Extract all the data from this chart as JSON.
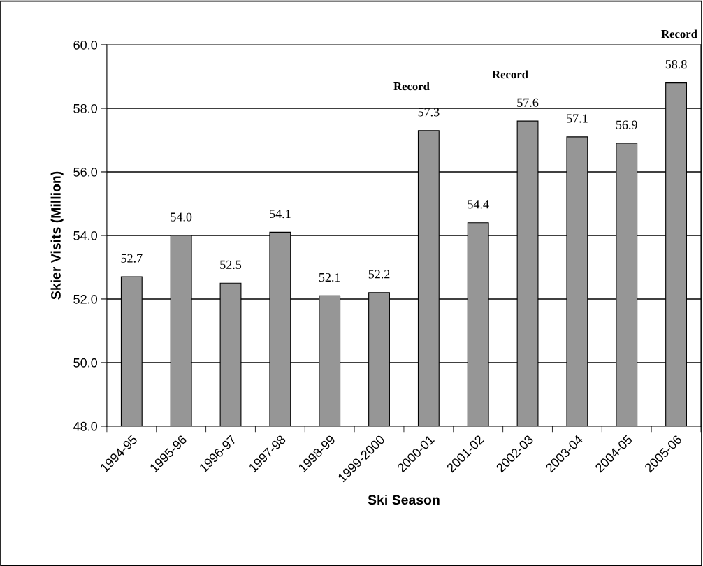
{
  "chart_data": {
    "type": "bar",
    "xlabel": "Ski Season",
    "ylabel": "Skier Visits (Million)",
    "categories": [
      "1994-95",
      "1995-96",
      "1996-97",
      "1997-98",
      "1998-99",
      "1999-2000",
      "2000-01",
      "2001-02",
      "2002-03",
      "2003-04",
      "2004-05",
      "2005-06"
    ],
    "values": [
      52.7,
      54.0,
      52.5,
      54.1,
      52.1,
      52.2,
      57.3,
      54.4,
      57.6,
      57.1,
      56.9,
      58.8
    ],
    "color": "#969696",
    "value_labels": [
      "52.7",
      "54.0",
      "52.5",
      "54.1",
      "52.1",
      "52.2",
      "57.3",
      "54.4",
      "57.6",
      "57.1",
      "56.9",
      "58.8"
    ],
    "ylim": [
      48,
      60
    ],
    "yticks": [
      {
        "value": 48,
        "label": "48.0"
      },
      {
        "value": 50,
        "label": "50.0"
      },
      {
        "value": 52,
        "label": "52.0"
      },
      {
        "value": 54,
        "label": "54.0"
      },
      {
        "value": 56,
        "label": "56.0"
      },
      {
        "value": 58,
        "label": "58.0"
      },
      {
        "value": 60,
        "label": "60.0"
      }
    ],
    "grid": "y",
    "annotations": [
      "Record",
      "Record",
      "Record"
    ]
  }
}
